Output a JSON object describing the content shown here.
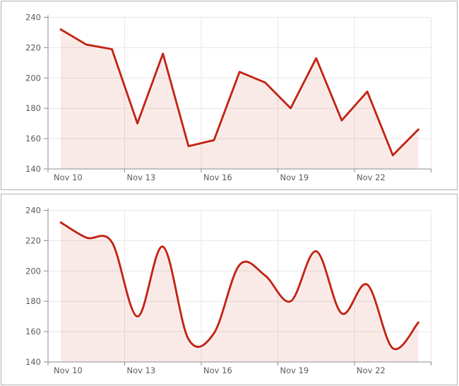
{
  "page": {
    "background": "#ffffff"
  },
  "panels": [
    {
      "name": "line-chart-panel"
    },
    {
      "name": "spline-chart-panel"
    }
  ],
  "style": {
    "grid_color": "#e7e7e7",
    "axis_color": "#8d8d8d",
    "label_color": "#5b5b5b",
    "panel_border": "#b2b2b2",
    "halo_color": "#ffffff"
  },
  "chart_data": [
    {
      "type": "area",
      "line_shape": "linear",
      "title": "",
      "xlabel": "",
      "ylabel": "",
      "x": [
        "Nov 10",
        "Nov 11",
        "Nov 12",
        "Nov 13",
        "Nov 14",
        "Nov 15",
        "Nov 16",
        "Nov 17",
        "Nov 18",
        "Nov 19",
        "Nov 20",
        "Nov 21",
        "Nov 22",
        "Nov 23",
        "Nov 24"
      ],
      "values": [
        232,
        222,
        219,
        170,
        216,
        155,
        159,
        204,
        197,
        180,
        213,
        172,
        191,
        149,
        166
      ],
      "ylim": [
        140,
        240
      ],
      "y_ticks": [
        240,
        220,
        200,
        180,
        160,
        140
      ],
      "x_tick_labels": [
        "Nov 10",
        "Nov 13",
        "Nov 16",
        "Nov 19",
        "Nov 22"
      ],
      "x_tick_every": 3,
      "grid": true,
      "legend": "none",
      "line_color": "#c32717",
      "fill_color": "rgba(197,41,24,0.10)"
    },
    {
      "type": "area",
      "line_shape": "spline",
      "title": "",
      "xlabel": "",
      "ylabel": "",
      "x": [
        "Nov 10",
        "Nov 11",
        "Nov 12",
        "Nov 13",
        "Nov 14",
        "Nov 15",
        "Nov 16",
        "Nov 17",
        "Nov 18",
        "Nov 19",
        "Nov 20",
        "Nov 21",
        "Nov 22",
        "Nov 23",
        "Nov 24"
      ],
      "values": [
        232,
        222,
        219,
        170,
        216,
        155,
        159,
        204,
        197,
        180,
        213,
        172,
        191,
        149,
        166
      ],
      "ylim": [
        140,
        240
      ],
      "y_ticks": [
        240,
        220,
        200,
        180,
        160,
        140
      ],
      "x_tick_labels": [
        "Nov 10",
        "Nov 13",
        "Nov 16",
        "Nov 19",
        "Nov 22"
      ],
      "x_tick_every": 3,
      "grid": true,
      "legend": "none",
      "line_color": "#c32717",
      "fill_color": "rgba(197,41,24,0.10)"
    }
  ]
}
